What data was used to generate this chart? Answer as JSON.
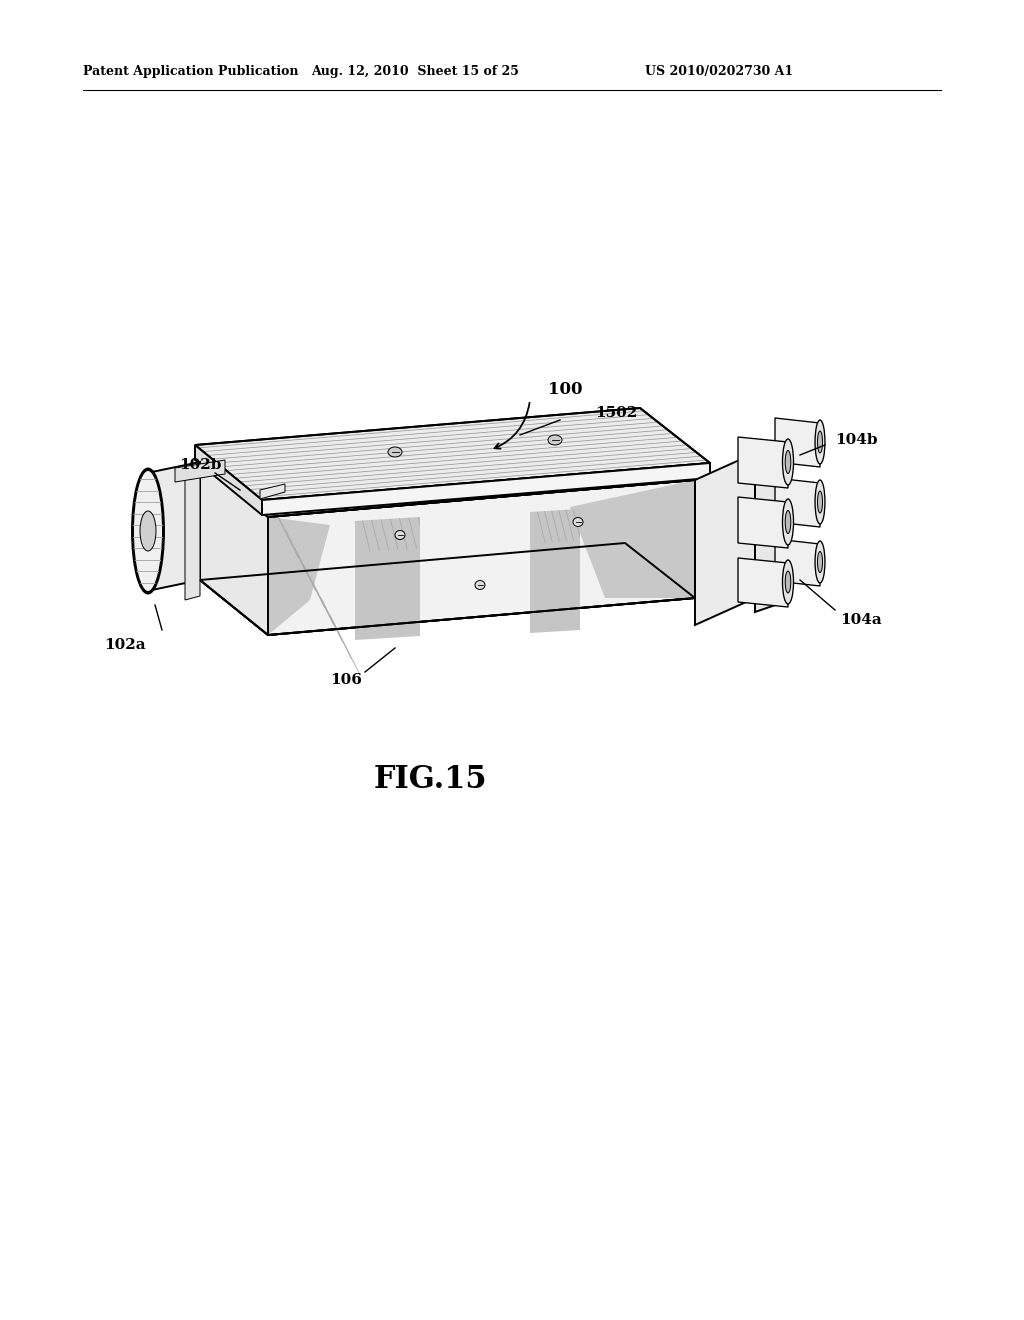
{
  "bg_color": "#ffffff",
  "header_left": "Patent Application Publication",
  "header_mid": "Aug. 12, 2010  Sheet 15 of 25",
  "header_right": "US 2010/0202730 A1",
  "fig_label": "FIG.15",
  "label_100": "100",
  "label_102a": "102a",
  "label_102b": "102b",
  "label_104a": "104a",
  "label_104b": "104b",
  "label_106": "106",
  "label_1502": "1502",
  "line_color": "#000000",
  "shade_light": "#e8e8e8",
  "shade_mid": "#cccccc",
  "shade_dark": "#aaaaaa",
  "white": "#ffffff"
}
